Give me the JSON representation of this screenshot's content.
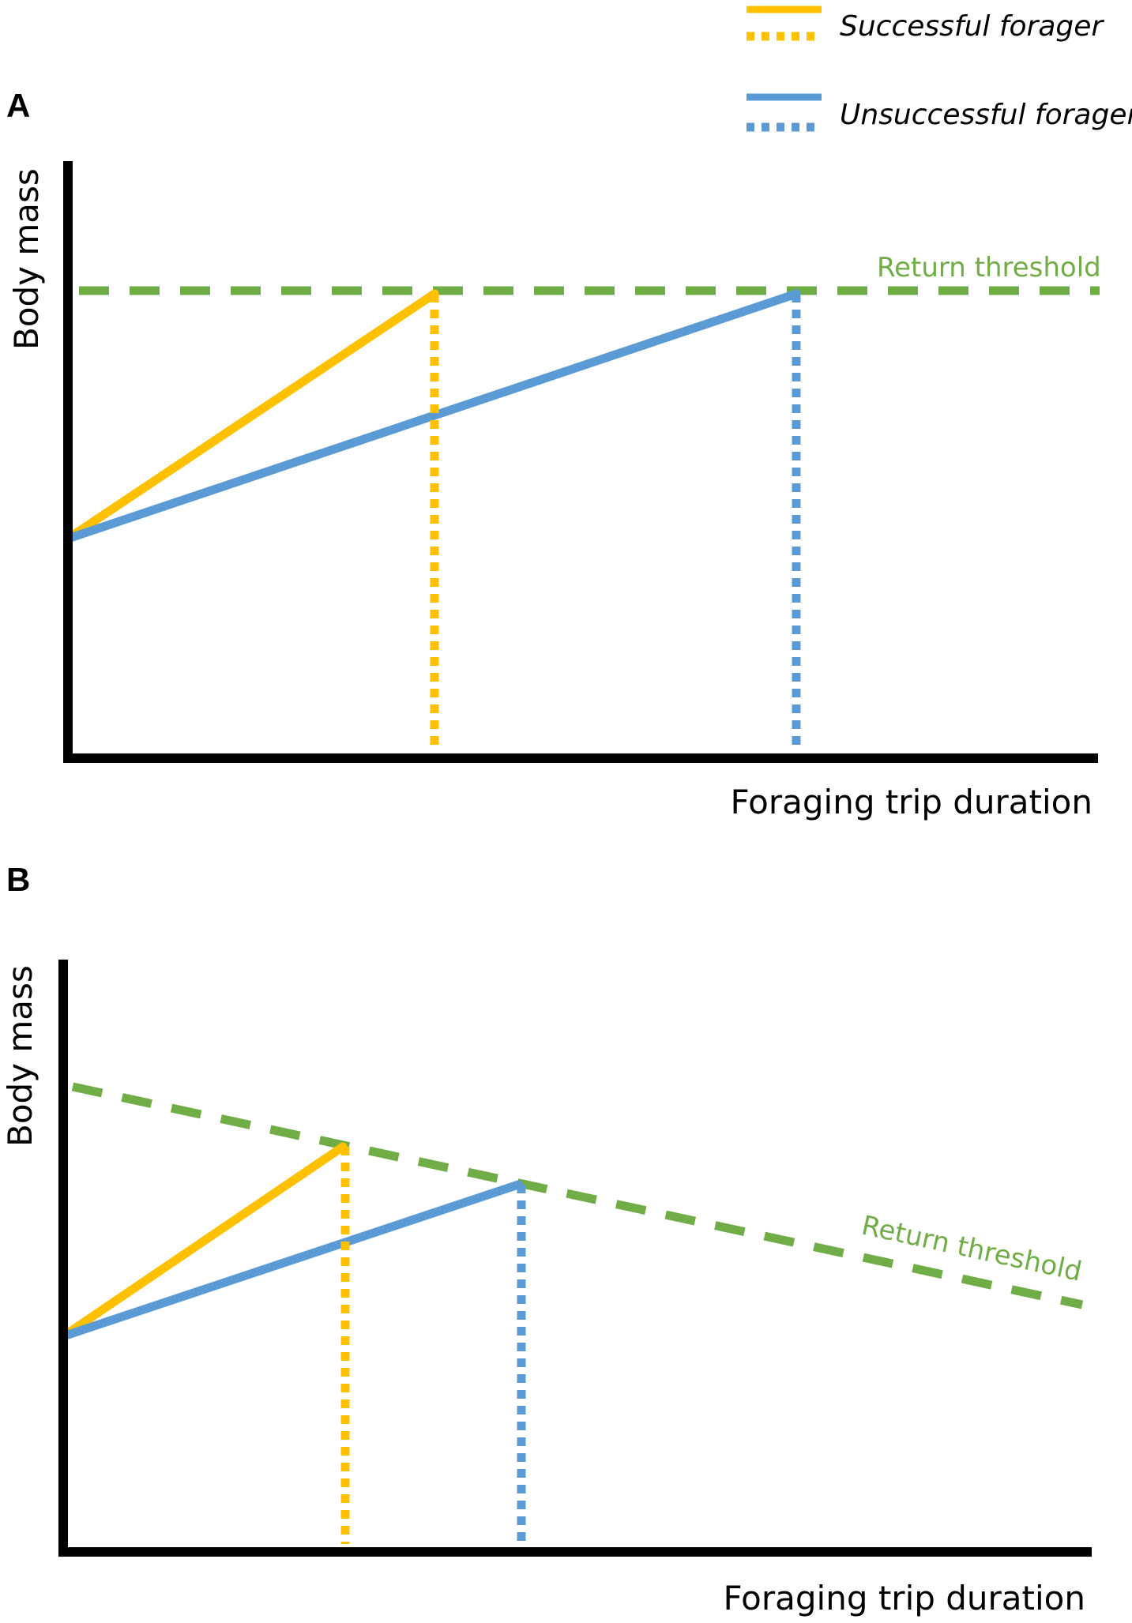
{
  "colors": {
    "successful": "#FFC000",
    "unsuccessful": "#5B9BD5",
    "threshold": "#70AD47",
    "axis": "#000000"
  },
  "legend": {
    "successful_label": "Successful forager",
    "unsuccessful_label": "Unsuccessful forager"
  },
  "panels": [
    {
      "letter": "A",
      "ylabel": "Body mass",
      "xlabel": "Foraging trip duration",
      "threshold_label": "Return threshold"
    },
    {
      "letter": "B",
      "ylabel": "Body mass",
      "xlabel": "Foraging trip duration",
      "threshold_label": "Return threshold"
    }
  ]
}
